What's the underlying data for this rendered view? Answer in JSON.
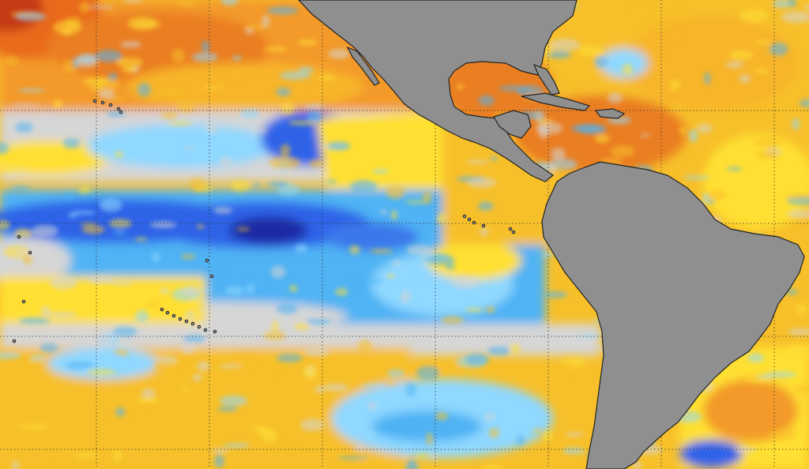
{
  "map": {
    "kind": "sea-surface-temperature-anomaly",
    "region": "eastern-pacific-and-atlantic",
    "graticule": "dotted",
    "colors": {
      "land": "#8f8f8f",
      "coastline": "#222222",
      "neutral": "#d6d6d6",
      "warm_light": "#ffe033",
      "warm": "#f7c02a",
      "warm_strong": "#f39a2a",
      "hot": "#ea6a1e",
      "hottest": "#c53a16",
      "cool_light": "#8fd8ff",
      "cool": "#4fb3f4",
      "cold": "#2f64e8",
      "coldest": "#1c2aa6",
      "grid": "#333333"
    },
    "icons": {
      "landmass": "landmass-shape",
      "island": "island-dot"
    }
  }
}
